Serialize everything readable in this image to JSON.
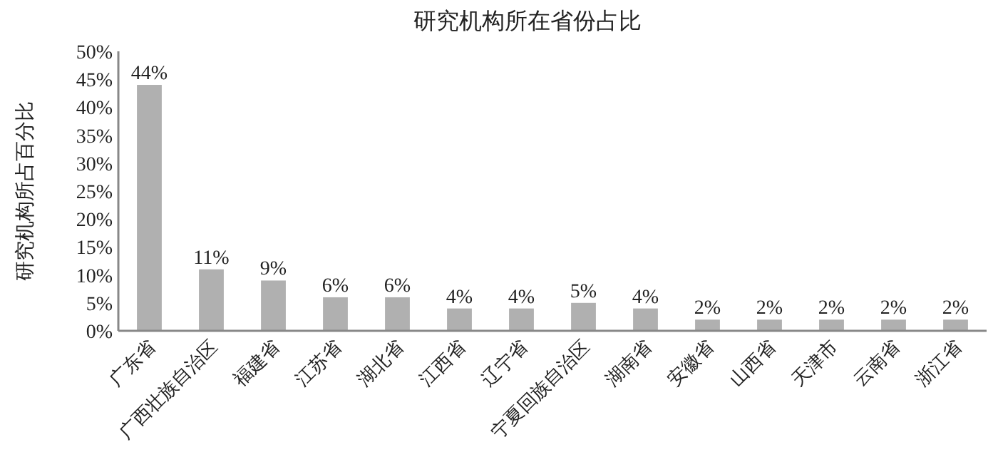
{
  "chart_data": {
    "type": "bar",
    "title": "研究机构所在省份占比",
    "ylabel": "研究机构所占百分比",
    "categories": [
      "广东省",
      "广西壮族自治区",
      "福建省",
      "江苏省",
      "湖北省",
      "江西省",
      "辽宁省",
      "宁夏回族自治区",
      "湖南省",
      "安徽省",
      "山西省",
      "天津市",
      "云南省",
      "浙江省"
    ],
    "values": [
      44,
      11,
      9,
      6,
      6,
      4,
      4,
      5,
      4,
      2,
      2,
      2,
      2,
      2
    ],
    "value_labels": [
      "44%",
      "11%",
      "9%",
      "6%",
      "6%",
      "4%",
      "4%",
      "5%",
      "4%",
      "2%",
      "2%",
      "2%",
      "2%",
      "2%"
    ],
    "color": "#b0b0b0",
    "ylim": [
      0,
      50
    ],
    "yticks": [
      {
        "value": 0,
        "label": "0%"
      },
      {
        "value": 5,
        "label": "5%"
      },
      {
        "value": 10,
        "label": "10%"
      },
      {
        "value": 15,
        "label": "15%"
      },
      {
        "value": 20,
        "label": "20%"
      },
      {
        "value": 25,
        "label": "25%"
      },
      {
        "value": 30,
        "label": "30%"
      },
      {
        "value": 35,
        "label": "35%"
      },
      {
        "value": 40,
        "label": "40%"
      },
      {
        "value": 45,
        "label": "45%"
      },
      {
        "value": 50,
        "label": "50%"
      }
    ]
  }
}
